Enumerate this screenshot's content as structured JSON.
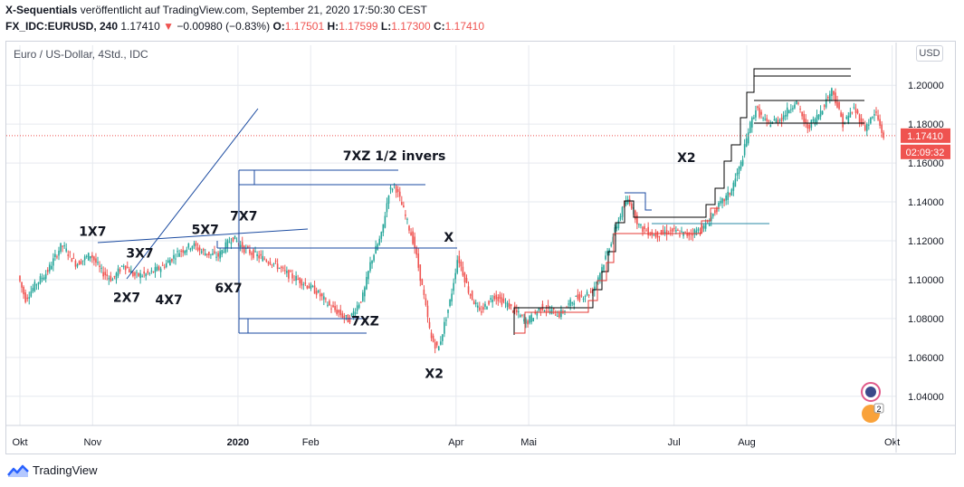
{
  "header": {
    "line1_name": "X-Sequentials",
    "line1_rest": " veröffentlicht auf TradingView.com, September 21, 2020 17:50:30 CEST",
    "symbol": "FX_IDC:EURUSD, 240",
    "last": "1.17410",
    "arrow": "▼",
    "change": "−0.00980 (−0.83%)",
    "o_label": "O:",
    "o": "1.17501",
    "h_label": "H:",
    "h": "1.17599",
    "l_label": "L:",
    "l": "1.17300",
    "c_label": "C:",
    "c": "1.17410"
  },
  "legend_title": "Euro / US-Dollar, 4Std., IDC",
  "currency_button": "USD",
  "price_badge": "1.17410",
  "countdown_badge": "02:09:32",
  "footer_logo": "TradingView",
  "colors": {
    "up": "#26a69a",
    "down": "#ef5350",
    "line": "#1a4aa0",
    "grid": "#e6e9ef",
    "badge": "#ef5350"
  },
  "chart_data": {
    "type": "candlestick",
    "title": "Euro / US-Dollar, 4Std., IDC",
    "ylim": [
      1.025,
      1.215
    ],
    "y_ticks": [
      "1.20000",
      "1.18000",
      "1.16000",
      "1.14000",
      "1.12000",
      "1.10000",
      "1.08000",
      "1.06000",
      "1.04000"
    ],
    "y_tick_values": [
      1.2,
      1.18,
      1.16,
      1.14,
      1.12,
      1.1,
      1.08,
      1.06,
      1.04
    ],
    "x_ticks": [
      "Okt",
      "Nov",
      "2020",
      "Feb",
      "Apr",
      "Mai",
      "Jul",
      "Aug",
      "Okt"
    ],
    "x_tick_months": [
      0,
      1,
      3,
      4,
      6,
      7,
      9,
      10,
      12
    ],
    "last_price": 1.1741,
    "price_path": [
      [
        0.0,
        1.102
      ],
      [
        0.1,
        1.09
      ],
      [
        0.25,
        1.098
      ],
      [
        0.4,
        1.104
      ],
      [
        0.6,
        1.118
      ],
      [
        0.8,
        1.108
      ],
      [
        1.0,
        1.113
      ],
      [
        1.15,
        1.104
      ],
      [
        1.3,
        1.1
      ],
      [
        1.45,
        1.108
      ],
      [
        1.6,
        1.102
      ],
      [
        1.8,
        1.103
      ],
      [
        2.0,
        1.107
      ],
      [
        2.2,
        1.114
      ],
      [
        2.4,
        1.118
      ],
      [
        2.55,
        1.114
      ],
      [
        2.75,
        1.112
      ],
      [
        2.95,
        1.122
      ],
      [
        3.1,
        1.116
      ],
      [
        3.3,
        1.112
      ],
      [
        3.5,
        1.109
      ],
      [
        3.7,
        1.103
      ],
      [
        3.9,
        1.099
      ],
      [
        4.1,
        1.094
      ],
      [
        4.3,
        1.086
      ],
      [
        4.55,
        1.079
      ],
      [
        4.75,
        1.092
      ],
      [
        4.85,
        1.109
      ],
      [
        5.0,
        1.123
      ],
      [
        5.1,
        1.145
      ],
      [
        5.18,
        1.149
      ],
      [
        5.3,
        1.136
      ],
      [
        5.45,
        1.118
      ],
      [
        5.58,
        1.092
      ],
      [
        5.68,
        1.07
      ],
      [
        5.78,
        1.064
      ],
      [
        5.95,
        1.09
      ],
      [
        6.05,
        1.112
      ],
      [
        6.2,
        1.094
      ],
      [
        6.35,
        1.083
      ],
      [
        6.55,
        1.092
      ],
      [
        6.8,
        1.085
      ],
      [
        7.0,
        1.078
      ],
      [
        7.2,
        1.086
      ],
      [
        7.45,
        1.082
      ],
      [
        7.65,
        1.09
      ],
      [
        7.9,
        1.094
      ],
      [
        8.05,
        1.108
      ],
      [
        8.2,
        1.124
      ],
      [
        8.3,
        1.135
      ],
      [
        8.4,
        1.142
      ],
      [
        8.55,
        1.127
      ],
      [
        8.75,
        1.123
      ],
      [
        9.0,
        1.125
      ],
      [
        9.2,
        1.123
      ],
      [
        9.45,
        1.127
      ],
      [
        9.6,
        1.136
      ],
      [
        9.8,
        1.145
      ],
      [
        9.95,
        1.16
      ],
      [
        10.05,
        1.177
      ],
      [
        10.15,
        1.188
      ],
      [
        10.3,
        1.18
      ],
      [
        10.5,
        1.183
      ],
      [
        10.7,
        1.192
      ],
      [
        10.85,
        1.178
      ],
      [
        11.0,
        1.184
      ],
      [
        11.2,
        1.198
      ],
      [
        11.35,
        1.18
      ],
      [
        11.5,
        1.188
      ],
      [
        11.65,
        1.178
      ],
      [
        11.8,
        1.186
      ],
      [
        11.9,
        1.174
      ]
    ],
    "annotations": [
      {
        "label": "1X7",
        "month": 1.0,
        "price": 1.1225
      },
      {
        "label": "3X7",
        "month": 1.65,
        "price": 1.1115
      },
      {
        "label": "5X7",
        "month": 2.55,
        "price": 1.1235
      },
      {
        "label": "7X7",
        "month": 3.08,
        "price": 1.1305
      },
      {
        "label": "2X7",
        "month": 1.47,
        "price": 1.0885
      },
      {
        "label": "4X7",
        "month": 2.05,
        "price": 1.0875
      },
      {
        "label": "6X7",
        "month": 2.87,
        "price": 1.0935
      },
      {
        "label": "7XZ 1/2 invers",
        "month": 5.15,
        "price": 1.1615
      },
      {
        "label": "X",
        "month": 5.9,
        "price": 1.1195
      },
      {
        "label": "7XZ",
        "month": 4.75,
        "price": 1.0765
      },
      {
        "label": "X2",
        "month": 5.7,
        "price": 1.0495
      },
      {
        "label": "X2",
        "month": 9.17,
        "price": 1.1605
      }
    ]
  },
  "side_badges": [
    {
      "name": "indicator-badge",
      "count": ""
    },
    {
      "name": "ideas-badge",
      "count": "2"
    }
  ]
}
